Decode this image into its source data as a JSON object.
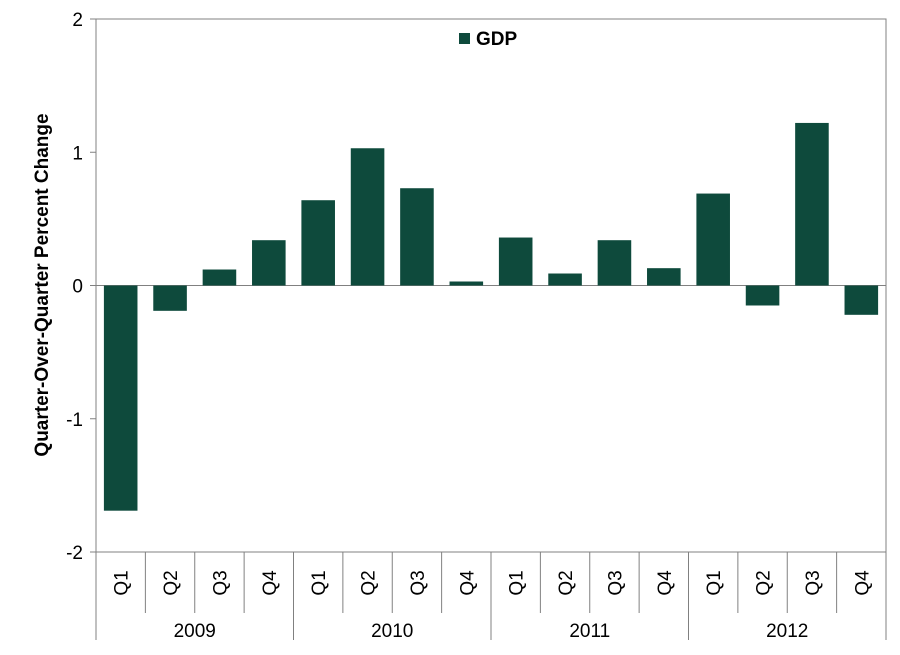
{
  "chart_data": {
    "type": "bar",
    "ylabel": "Quarter-Over-Quarter Percent Change",
    "ylim": [
      -2,
      2
    ],
    "yticks": [
      "-2",
      "-1",
      "0",
      "1",
      "2"
    ],
    "categories": [
      "Q1",
      "Q2",
      "Q3",
      "Q4",
      "Q1",
      "Q2",
      "Q3",
      "Q4",
      "Q1",
      "Q2",
      "Q3",
      "Q4",
      "Q1",
      "Q2",
      "Q3",
      "Q4"
    ],
    "groups": [
      "2009",
      "2010",
      "2011",
      "2012"
    ],
    "series": [
      {
        "name": "GDP",
        "color": "#0e4a3c",
        "values": [
          -1.69,
          -0.19,
          0.12,
          0.34,
          0.64,
          1.03,
          0.73,
          0.03,
          0.36,
          0.09,
          0.34,
          0.13,
          0.69,
          -0.15,
          1.22,
          -0.22
        ]
      }
    ],
    "legend": "top-center",
    "grid": false
  }
}
